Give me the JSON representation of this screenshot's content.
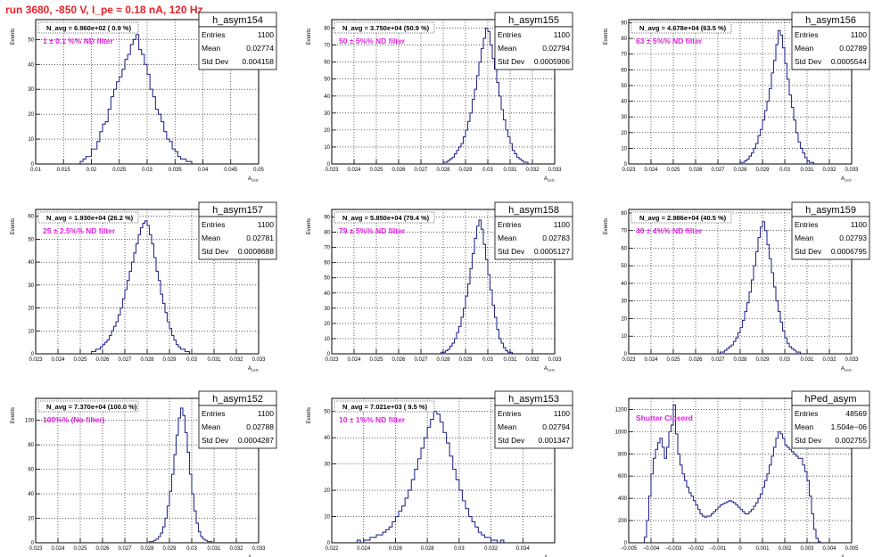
{
  "run_title": "run 3680,  -850 V, I_pe ≈ 0.18 nA, 120 Hz",
  "colors": {
    "histogram": "#2a2f8f",
    "annotation": "#e020e0",
    "title": "#e8222a"
  },
  "chart_data": [
    {
      "type": "histogram",
      "name": "h_asym154",
      "navg": "N_avg = 6.960e+02 ( 0.9 %)",
      "filter": "1 ± 0.1 %% ND filter",
      "stats": {
        "entries": "1100",
        "mean": "0.02774",
        "std_dev": "0.004158"
      },
      "xlabel": "A_LED",
      "ylabel": "Events",
      "xlim": [
        0.01,
        0.05
      ],
      "ylim": [
        0,
        58
      ],
      "xticks": [
        "0.01",
        "0.015",
        "0.02",
        "0.025",
        "0.03",
        "0.035",
        "0.04",
        "0.045",
        "0.05"
      ],
      "yticks": [
        0,
        10,
        20,
        30,
        40,
        50
      ],
      "bins": {
        "start": 0.01,
        "width": 0.0005,
        "counts": [
          0,
          0,
          0,
          0,
          0,
          0,
          0,
          0,
          0,
          0,
          0,
          0,
          0,
          0,
          0,
          0,
          1,
          2,
          3,
          3,
          6,
          6,
          9,
          13,
          16,
          17,
          22,
          27,
          30,
          33,
          35,
          38,
          42,
          44,
          48,
          50,
          52,
          46,
          44,
          40,
          36,
          30,
          27,
          22,
          20,
          17,
          13,
          10,
          9,
          6,
          5,
          3,
          2,
          2,
          1,
          1,
          0,
          0,
          0,
          0,
          0,
          0,
          0,
          0,
          0,
          0,
          0,
          0,
          0,
          0,
          0,
          0,
          0,
          0,
          0,
          0,
          0,
          0,
          0,
          0
        ]
      }
    },
    {
      "type": "histogram",
      "name": "h_asym155",
      "navg": "N_avg = 3.750e+04 (50.9 %)",
      "filter": "50 ± 5%% ND filter",
      "stats": {
        "entries": "1100",
        "mean": "0.02794",
        "std_dev": "0.0005906"
      },
      "xlabel": "A_LED",
      "ylabel": "Events",
      "xlim": [
        0.023,
        0.033
      ],
      "ylim": [
        0,
        85
      ],
      "xticks": [
        "0.023",
        "0.024",
        "0.025",
        "0.026",
        "0.027",
        "0.028",
        "0.029",
        "0.03",
        "0.031",
        "0.032",
        "0.033"
      ],
      "yticks": [
        0,
        10,
        20,
        30,
        40,
        50,
        60,
        70,
        80
      ],
      "bins": {
        "start": 0.023,
        "width": 0.0001,
        "counts": [
          0,
          0,
          0,
          0,
          0,
          0,
          0,
          0,
          0,
          0,
          0,
          0,
          0,
          0,
          0,
          0,
          0,
          0,
          0,
          0,
          0,
          0,
          0,
          0,
          0,
          0,
          0,
          0,
          0,
          0,
          0,
          0,
          0,
          0,
          0,
          0,
          0,
          0,
          0,
          0,
          0,
          0,
          0,
          0,
          0,
          0,
          0,
          0,
          0,
          0,
          1,
          1,
          2,
          3,
          4,
          6,
          8,
          10,
          12,
          16,
          20,
          25,
          30,
          38,
          44,
          52,
          60,
          68,
          74,
          80,
          78,
          70,
          62,
          56,
          48,
          40,
          32,
          26,
          20,
          16,
          12,
          8,
          6,
          4,
          3,
          2,
          1,
          1,
          0,
          0,
          0,
          0,
          0,
          0,
          0,
          0,
          0,
          0,
          0,
          0
        ]
      }
    },
    {
      "type": "histogram",
      "name": "h_asym156",
      "navg": "N_avg = 4.678e+04 (63.5 %)",
      "filter": "63 ± 5%% ND filter",
      "stats": {
        "entries": "1100",
        "mean": "0.02789",
        "std_dev": "0.0005544"
      },
      "xlabel": "A_LED",
      "ylabel": "Events",
      "xlim": [
        0.023,
        0.033
      ],
      "ylim": [
        0,
        92
      ],
      "xticks": [
        "0.023",
        "0.024",
        "0.025",
        "0.026",
        "0.027",
        "0.028",
        "0.029",
        "0.03",
        "0.031",
        "0.032",
        "0.033"
      ],
      "yticks": [
        0,
        10,
        20,
        30,
        40,
        50,
        60,
        70,
        80,
        90
      ],
      "bins": {
        "start": 0.023,
        "width": 0.0001,
        "counts": [
          0,
          0,
          0,
          0,
          0,
          0,
          0,
          0,
          0,
          0,
          0,
          0,
          0,
          0,
          0,
          0,
          0,
          0,
          0,
          0,
          0,
          0,
          0,
          0,
          0,
          0,
          0,
          0,
          0,
          0,
          0,
          0,
          0,
          0,
          0,
          0,
          0,
          0,
          0,
          0,
          0,
          0,
          0,
          0,
          0,
          0,
          0,
          0,
          0,
          0,
          1,
          1,
          2,
          3,
          5,
          7,
          10,
          13,
          18,
          22,
          28,
          34,
          40,
          48,
          58,
          66,
          76,
          85,
          82,
          74,
          64,
          54,
          44,
          36,
          28,
          20,
          14,
          10,
          7,
          4,
          2,
          1,
          1,
          0,
          0,
          0,
          0,
          0,
          0,
          0,
          0,
          0,
          0,
          0,
          0,
          0,
          0,
          0,
          0,
          0
        ]
      }
    },
    {
      "type": "histogram",
      "name": "h_asym157",
      "navg": "N_avg = 1.930e+04 (26.2 %)",
      "filter": "25 ± 2.5%% ND filter",
      "stats": {
        "entries": "1100",
        "mean": "0.02781",
        "std_dev": "0.0008688"
      },
      "xlabel": "A_LED",
      "ylabel": "Events",
      "xlim": [
        0.023,
        0.033
      ],
      "ylim": [
        0,
        63
      ],
      "xticks": [
        "0.023",
        "0.024",
        "0.025",
        "0.026",
        "0.027",
        "0.028",
        "0.029",
        "0.03",
        "0.031",
        "0.032",
        "0.033"
      ],
      "yticks": [
        0,
        10,
        20,
        30,
        40,
        50,
        60
      ],
      "bins": {
        "start": 0.023,
        "width": 0.0001,
        "counts": [
          0,
          0,
          0,
          0,
          0,
          0,
          0,
          0,
          0,
          0,
          0,
          0,
          0,
          0,
          0,
          0,
          0,
          0,
          0,
          0,
          0,
          0,
          0,
          0,
          0,
          1,
          1,
          2,
          2,
          3,
          4,
          5,
          6,
          8,
          10,
          12,
          14,
          17,
          20,
          24,
          28,
          32,
          36,
          40,
          44,
          48,
          52,
          55,
          57,
          58,
          56,
          52,
          48,
          42,
          36,
          32,
          26,
          22,
          18,
          14,
          11,
          8,
          6,
          4,
          3,
          2,
          2,
          1,
          1,
          0,
          0,
          0,
          0,
          0,
          0,
          0,
          0,
          0,
          0,
          0,
          0,
          0,
          0,
          0,
          0,
          0,
          0,
          0,
          0,
          0,
          0,
          0,
          0,
          0,
          0,
          0,
          0,
          0,
          0,
          0
        ]
      }
    },
    {
      "type": "histogram",
      "name": "h_asym158",
      "navg": "N_avg = 5.850e+04 (79.4 %)",
      "filter": "79 ± 5%% ND filter",
      "stats": {
        "entries": "1100",
        "mean": "0.02783",
        "std_dev": "0.0005127"
      },
      "xlabel": "A_LED",
      "ylabel": "Events",
      "xlim": [
        0.023,
        0.033
      ],
      "ylim": [
        0,
        95
      ],
      "xticks": [
        "0.023",
        "0.024",
        "0.025",
        "0.026",
        "0.027",
        "0.028",
        "0.029",
        "0.03",
        "0.031",
        "0.032",
        "0.033"
      ],
      "yticks": [
        0,
        10,
        20,
        30,
        40,
        50,
        60,
        70,
        80,
        90
      ],
      "bins": {
        "start": 0.023,
        "width": 0.0001,
        "counts": [
          0,
          0,
          0,
          0,
          0,
          0,
          0,
          0,
          0,
          0,
          0,
          0,
          0,
          0,
          0,
          0,
          0,
          0,
          0,
          0,
          0,
          0,
          0,
          0,
          0,
          0,
          0,
          0,
          0,
          0,
          0,
          0,
          0,
          0,
          0,
          0,
          0,
          0,
          0,
          0,
          0,
          0,
          0,
          0,
          0,
          0,
          0,
          0,
          0,
          1,
          1,
          2,
          3,
          5,
          7,
          10,
          14,
          18,
          24,
          30,
          38,
          46,
          56,
          66,
          76,
          84,
          88,
          82,
          72,
          62,
          52,
          42,
          32,
          24,
          16,
          10,
          7,
          4,
          2,
          1,
          1,
          0,
          0,
          0,
          0,
          0,
          0,
          0,
          0,
          0,
          0,
          0,
          0,
          0,
          0,
          0,
          0,
          0,
          0,
          0
        ]
      }
    },
    {
      "type": "histogram",
      "name": "h_asym159",
      "navg": "N_avg = 2.986e+04 (40.5 %)",
      "filter": "40 ± 4%% ND filter",
      "stats": {
        "entries": "1100",
        "mean": "0.02793",
        "std_dev": "0.0006795"
      },
      "xlabel": "A_LED",
      "ylabel": "Events",
      "xlim": [
        0.023,
        0.033
      ],
      "ylim": [
        0,
        82
      ],
      "xticks": [
        "0.023",
        "0.024",
        "0.025",
        "0.026",
        "0.027",
        "0.028",
        "0.029",
        "0.03",
        "0.031",
        "0.032",
        "0.033"
      ],
      "yticks": [
        0,
        10,
        20,
        30,
        40,
        50,
        60,
        70,
        80
      ],
      "bins": {
        "start": 0.023,
        "width": 0.0001,
        "counts": [
          0,
          0,
          0,
          0,
          0,
          0,
          0,
          0,
          0,
          0,
          0,
          0,
          0,
          0,
          0,
          0,
          0,
          0,
          0,
          0,
          0,
          0,
          0,
          0,
          0,
          0,
          0,
          0,
          0,
          0,
          0,
          0,
          0,
          0,
          0,
          0,
          0,
          0,
          0,
          0,
          0,
          1,
          1,
          2,
          3,
          4,
          5,
          7,
          9,
          12,
          15,
          19,
          24,
          29,
          35,
          42,
          50,
          58,
          66,
          72,
          75,
          70,
          62,
          54,
          46,
          38,
          30,
          24,
          18,
          13,
          9,
          6,
          4,
          3,
          2,
          1,
          1,
          0,
          0,
          0,
          0,
          0,
          0,
          0,
          0,
          0,
          0,
          0,
          0,
          0,
          0,
          0,
          0,
          0,
          0,
          0,
          0,
          0,
          0,
          0
        ]
      }
    },
    {
      "type": "histogram",
      "name": "h_asym152",
      "navg": "N_avg = 7.370e+04 (100.0 %)",
      "filter": "100%% (No filter)",
      "stats": {
        "entries": "1100",
        "mean": "0.02788",
        "std_dev": "0.0004287"
      },
      "xlabel": "A_LED",
      "ylabel": "Events",
      "xlim": [
        0.023,
        0.033
      ],
      "ylim": [
        0,
        118
      ],
      "xticks": [
        "0.023",
        "0.024",
        "0.025",
        "0.026",
        "0.027",
        "0.028",
        "0.029",
        "0.03",
        "0.031",
        "0.032",
        "0.033"
      ],
      "yticks": [
        0,
        20,
        40,
        60,
        80,
        100
      ],
      "bins": {
        "start": 0.023,
        "width": 0.0001,
        "counts": [
          0,
          0,
          0,
          0,
          0,
          0,
          0,
          0,
          0,
          0,
          0,
          0,
          0,
          0,
          0,
          0,
          0,
          0,
          0,
          0,
          0,
          0,
          0,
          0,
          0,
          0,
          0,
          0,
          0,
          0,
          0,
          0,
          0,
          0,
          0,
          0,
          0,
          0,
          0,
          0,
          0,
          0,
          0,
          0,
          0,
          0,
          0,
          0,
          0,
          0,
          0,
          1,
          1,
          2,
          3,
          5,
          8,
          13,
          20,
          30,
          42,
          56,
          72,
          88,
          102,
          110,
          104,
          90,
          74,
          56,
          40,
          26,
          16,
          9,
          5,
          3,
          2,
          1,
          1,
          0,
          0,
          0,
          0,
          0,
          0,
          0,
          0,
          0,
          0,
          0,
          0,
          0,
          0,
          0,
          0,
          0,
          0,
          0,
          0,
          0
        ]
      }
    },
    {
      "type": "histogram",
      "name": "h_asym153",
      "navg": "N_avg = 7.021e+03 ( 9.5 %)",
      "filter": "10 ± 1%% ND filter",
      "stats": {
        "entries": "1100",
        "mean": "0.02794",
        "std_dev": "0.001347"
      },
      "xlabel": "A_LED",
      "ylabel": "Events",
      "xlim": [
        0.022,
        0.036
      ],
      "ylim": [
        0,
        55
      ],
      "xticks": [
        "0.022",
        "0.024",
        "0.026",
        "0.028",
        "0.03",
        "0.032",
        "0.034"
      ],
      "yticks": [
        0,
        10,
        20,
        30,
        40,
        50
      ],
      "bins": {
        "start": 0.022,
        "width": 0.0002,
        "counts": [
          0,
          0,
          0,
          0,
          0,
          0,
          0,
          0,
          1,
          0,
          1,
          1,
          2,
          2,
          3,
          3,
          4,
          5,
          6,
          8,
          10,
          12,
          14,
          17,
          20,
          24,
          28,
          32,
          36,
          40,
          44,
          47,
          50,
          49,
          46,
          42,
          38,
          33,
          28,
          24,
          20,
          16,
          13,
          10,
          8,
          6,
          4,
          3,
          2,
          2,
          1,
          1,
          0,
          1,
          0,
          0,
          0,
          0,
          0,
          0,
          0,
          0,
          0,
          0,
          0,
          0,
          0,
          0,
          0,
          0
        ]
      }
    },
    {
      "type": "histogram",
      "name": "hPed_asym",
      "navg": "",
      "filter": "Shutter Closerd",
      "stats": {
        "entries": "48569",
        "mean": "1.504e−06",
        "std_dev": "0.002755"
      },
      "xlabel": "A_LED",
      "ylabel": "",
      "xlim": [
        -0.005,
        0.005
      ],
      "ylim": [
        0,
        1300
      ],
      "xticks": [
        "−0.005",
        "−0.004",
        "−0.003",
        "−0.002",
        "−0.001",
        "0",
        "0.001",
        "0.002",
        "0.003",
        "0.004",
        "0.005"
      ],
      "yticks": [
        0,
        200,
        400,
        600,
        800,
        1000,
        1200
      ],
      "bins": {
        "start": -0.005,
        "width": 0.0001,
        "counts": [
          0,
          0,
          0,
          0,
          0,
          0,
          0,
          50,
          200,
          420,
          620,
          760,
          840,
          900,
          940,
          860,
          760,
          860,
          1000,
          1060,
          1240,
          980,
          800,
          700,
          620,
          560,
          500,
          450,
          420,
          380,
          340,
          300,
          260,
          240,
          230,
          240,
          240,
          260,
          280,
          300,
          320,
          340,
          350,
          360,
          370,
          380,
          370,
          360,
          340,
          320,
          300,
          280,
          260,
          260,
          280,
          300,
          330,
          360,
          400,
          440,
          500,
          560,
          620,
          700,
          780,
          860,
          940,
          1000,
          980,
          940,
          880,
          860,
          840,
          820,
          800,
          780,
          760,
          760,
          700,
          640,
          560,
          420,
          260,
          120,
          40,
          10,
          0,
          0,
          0,
          0,
          0,
          0,
          0,
          0,
          0,
          0,
          0,
          0,
          0,
          0
        ]
      }
    }
  ]
}
